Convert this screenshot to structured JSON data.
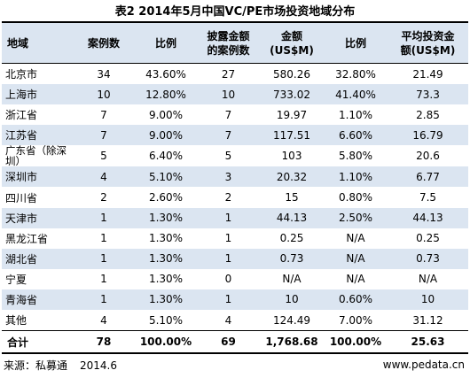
{
  "title": "表2 2014年5月中国VC/PE市场投资地域分布",
  "headers": {
    "region": "地域",
    "cases": "案例数",
    "ratio": "比例",
    "disclosed_line1": "披露金额",
    "disclosed_line2": "的案例数",
    "amount_line1": "金额",
    "amount_line2": "(US$M)",
    "amount_ratio": "比例",
    "avg_line1": "平均投资金",
    "avg_line2": "额(US$M)"
  },
  "rows": [
    {
      "region": "北京市",
      "cases": "34",
      "ratio": "43.60%",
      "disclosed": "27",
      "amount": "580.26",
      "amount_ratio": "32.80%",
      "avg": "21.49"
    },
    {
      "region": "上海市",
      "cases": "10",
      "ratio": "12.80%",
      "disclosed": "10",
      "amount": "733.02",
      "amount_ratio": "41.40%",
      "avg": "73.3"
    },
    {
      "region": "浙江省",
      "cases": "7",
      "ratio": "9.00%",
      "disclosed": "7",
      "amount": "19.97",
      "amount_ratio": "1.10%",
      "avg": "2.85"
    },
    {
      "region": "江苏省",
      "cases": "7",
      "ratio": "9.00%",
      "disclosed": "7",
      "amount": "117.51",
      "amount_ratio": "6.60%",
      "avg": "16.79"
    },
    {
      "region": "广东省（除深圳）",
      "cases": "5",
      "ratio": "6.40%",
      "disclosed": "5",
      "amount": "103",
      "amount_ratio": "5.80%",
      "avg": "20.6"
    },
    {
      "region": "深圳市",
      "cases": "4",
      "ratio": "5.10%",
      "disclosed": "3",
      "amount": "20.32",
      "amount_ratio": "1.10%",
      "avg": "6.77"
    },
    {
      "region": "四川省",
      "cases": "2",
      "ratio": "2.60%",
      "disclosed": "2",
      "amount": "15",
      "amount_ratio": "0.80%",
      "avg": "7.5"
    },
    {
      "region": "天津市",
      "cases": "1",
      "ratio": "1.30%",
      "disclosed": "1",
      "amount": "44.13",
      "amount_ratio": "2.50%",
      "avg": "44.13"
    },
    {
      "region": "黑龙江省",
      "cases": "1",
      "ratio": "1.30%",
      "disclosed": "1",
      "amount": "0.25",
      "amount_ratio": "N/A",
      "avg": "0.25"
    },
    {
      "region": "湖北省",
      "cases": "1",
      "ratio": "1.30%",
      "disclosed": "1",
      "amount": "0.73",
      "amount_ratio": "N/A",
      "avg": "0.73"
    },
    {
      "region": "宁夏",
      "cases": "1",
      "ratio": "1.30%",
      "disclosed": "0",
      "amount": "N/A",
      "amount_ratio": "N/A",
      "avg": "N/A"
    },
    {
      "region": "青海省",
      "cases": "1",
      "ratio": "1.30%",
      "disclosed": "1",
      "amount": "10",
      "amount_ratio": "0.60%",
      "avg": "10"
    },
    {
      "region": "其他",
      "cases": "4",
      "ratio": "5.10%",
      "disclosed": "4",
      "amount": "124.49",
      "amount_ratio": "7.00%",
      "avg": "31.12"
    }
  ],
  "total": {
    "region": "合计",
    "cases": "78",
    "ratio": "100.00%",
    "disclosed": "69",
    "amount": "1,768.68",
    "amount_ratio": "100.00%",
    "avg": "25.63"
  },
  "footer": {
    "source": "来源：私募通",
    "date": "2014.6",
    "url": "www.pedata.cn"
  },
  "colors": {
    "header_band": "#dbe5f1",
    "alt_row": "#dbe5f1",
    "rule": "#000000"
  }
}
